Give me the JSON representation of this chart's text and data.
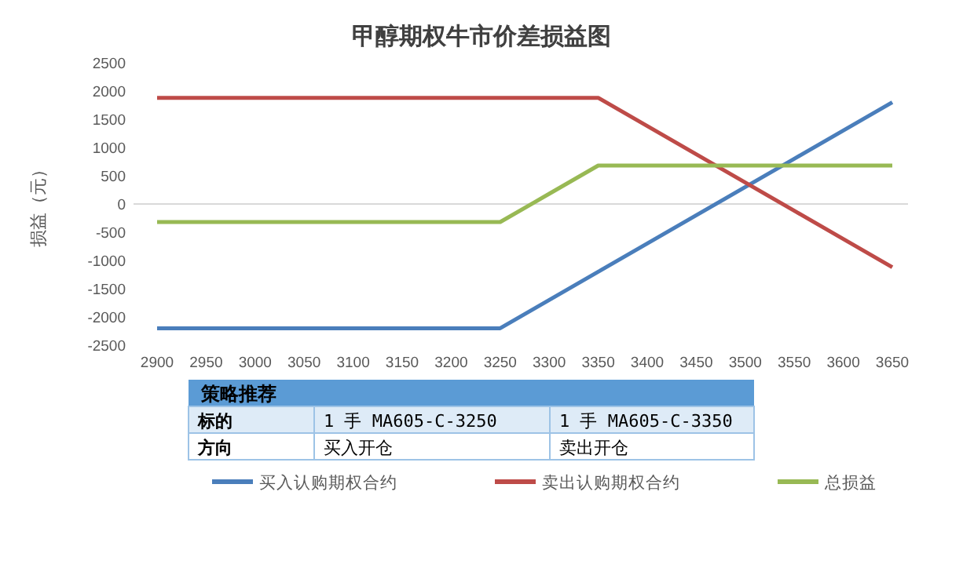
{
  "chart_data": {
    "type": "line",
    "title": "甲醇期权牛市价差损益图",
    "ylabel": "损益（元）",
    "categories": [
      "2900",
      "2950",
      "3000",
      "3050",
      "3100",
      "3150",
      "3200",
      "3250",
      "3300",
      "3350",
      "3400",
      "3450",
      "3500",
      "3550",
      "3600",
      "3650"
    ],
    "series": [
      {
        "name": "买入认购期权合约",
        "color": "#4a7ebb",
        "values": [
          -2200,
          -2200,
          -2200,
          -2200,
          -2200,
          -2200,
          -2200,
          -2200,
          -1700,
          -1200,
          -700,
          -200,
          300,
          800,
          1300,
          1800
        ]
      },
      {
        "name": "卖出认购期权合约",
        "color": "#be4b48",
        "values": [
          1880,
          1880,
          1880,
          1880,
          1880,
          1880,
          1880,
          1880,
          1880,
          1880,
          1380,
          880,
          380,
          -120,
          -620,
          -1120
        ]
      },
      {
        "name": "总损益",
        "color": "#98b954",
        "values": [
          -320,
          -320,
          -320,
          -320,
          -320,
          -320,
          -320,
          -320,
          180,
          680,
          680,
          680,
          680,
          680,
          680,
          680
        ]
      }
    ],
    "ylim": [
      -2500,
      2500
    ],
    "yticks": [
      -2500,
      -2000,
      -1500,
      -1000,
      -500,
      0,
      500,
      1000,
      1500,
      2000,
      2500
    ],
    "legend": "bottom",
    "marker": "none",
    "line_style": "solid",
    "annotations": [
      "策略推荐",
      "标的",
      "1 手 MA605-C-3250",
      "1 手 MA605-C-3350",
      "方向",
      "买入开仓",
      "卖出开仓"
    ]
  }
}
